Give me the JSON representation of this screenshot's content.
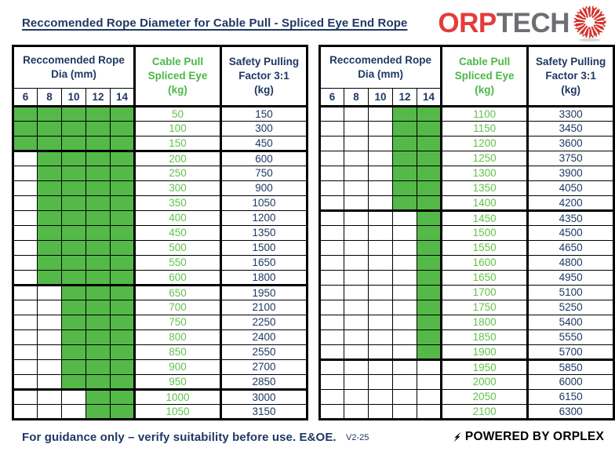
{
  "title": "Reccomended Rope Diameter for Cable Pull - Spliced Eye End Rope",
  "logo": {
    "part1": "ORP",
    "part2": "TECH"
  },
  "colors": {
    "navy": "#1F3864",
    "green_fill": "#54B948",
    "green_header_text": "#4CB848",
    "green_value_text": "#63C24C",
    "logo_red": "#E23D3B",
    "logo_gray": "#6D6E71",
    "border_black": "#000000"
  },
  "header": {
    "dia": "Reccomended Rope\nDia (mm)",
    "cable": "Cable Pull\nSpliced Eye\n(kg)",
    "safety": "Safety Pulling\nFactor 3:1\n(kg)",
    "diameters": [
      "6",
      "8",
      "10",
      "12",
      "14"
    ]
  },
  "tables": [
    {
      "rows": [
        {
          "pull": "50",
          "safety": "150",
          "green": [
            6,
            8,
            10,
            12,
            14
          ],
          "group_end": false
        },
        {
          "pull": "100",
          "safety": "300",
          "green": [
            6,
            8,
            10,
            12,
            14
          ],
          "group_end": false
        },
        {
          "pull": "150",
          "safety": "450",
          "green": [
            6,
            8,
            10,
            12,
            14
          ],
          "group_end": true
        },
        {
          "pull": "200",
          "safety": "600",
          "green": [
            8,
            10,
            12,
            14
          ],
          "group_end": false
        },
        {
          "pull": "250",
          "safety": "750",
          "green": [
            8,
            10,
            12,
            14
          ],
          "group_end": false
        },
        {
          "pull": "300",
          "safety": "900",
          "green": [
            8,
            10,
            12,
            14
          ],
          "group_end": false
        },
        {
          "pull": "350",
          "safety": "1050",
          "green": [
            8,
            10,
            12,
            14
          ],
          "group_end": false
        },
        {
          "pull": "400",
          "safety": "1200",
          "green": [
            8,
            10,
            12,
            14
          ],
          "group_end": false
        },
        {
          "pull": "450",
          "safety": "1350",
          "green": [
            8,
            10,
            12,
            14
          ],
          "group_end": false
        },
        {
          "pull": "500",
          "safety": "1500",
          "green": [
            8,
            10,
            12,
            14
          ],
          "group_end": false
        },
        {
          "pull": "550",
          "safety": "1650",
          "green": [
            8,
            10,
            12,
            14
          ],
          "group_end": false
        },
        {
          "pull": "600",
          "safety": "1800",
          "green": [
            8,
            10,
            12,
            14
          ],
          "group_end": true
        },
        {
          "pull": "650",
          "safety": "1950",
          "green": [
            10,
            12,
            14
          ],
          "group_end": false
        },
        {
          "pull": "700",
          "safety": "2100",
          "green": [
            10,
            12,
            14
          ],
          "group_end": false
        },
        {
          "pull": "750",
          "safety": "2250",
          "green": [
            10,
            12,
            14
          ],
          "group_end": false
        },
        {
          "pull": "800",
          "safety": "2400",
          "green": [
            10,
            12,
            14
          ],
          "group_end": false
        },
        {
          "pull": "850",
          "safety": "2550",
          "green": [
            10,
            12,
            14
          ],
          "group_end": false
        },
        {
          "pull": "900",
          "safety": "2700",
          "green": [
            10,
            12,
            14
          ],
          "group_end": false
        },
        {
          "pull": "950",
          "safety": "2850",
          "green": [
            10,
            12,
            14
          ],
          "group_end": true
        },
        {
          "pull": "1000",
          "safety": "3000",
          "green": [
            12,
            14
          ],
          "group_end": false
        },
        {
          "pull": "1050",
          "safety": "3150",
          "green": [
            12,
            14
          ],
          "group_end": false
        }
      ]
    },
    {
      "rows": [
        {
          "pull": "1100",
          "safety": "3300",
          "green": [
            12,
            14
          ],
          "group_end": false
        },
        {
          "pull": "1150",
          "safety": "3450",
          "green": [
            12,
            14
          ],
          "group_end": false
        },
        {
          "pull": "1200",
          "safety": "3600",
          "green": [
            12,
            14
          ],
          "group_end": false
        },
        {
          "pull": "1250",
          "safety": "3750",
          "green": [
            12,
            14
          ],
          "group_end": false
        },
        {
          "pull": "1300",
          "safety": "3900",
          "green": [
            12,
            14
          ],
          "group_end": false
        },
        {
          "pull": "1350",
          "safety": "4050",
          "green": [
            12,
            14
          ],
          "group_end": false
        },
        {
          "pull": "1400",
          "safety": "4200",
          "green": [
            12,
            14
          ],
          "group_end": true
        },
        {
          "pull": "1450",
          "safety": "4350",
          "green": [
            14
          ],
          "group_end": false
        },
        {
          "pull": "1500",
          "safety": "4500",
          "green": [
            14
          ],
          "group_end": false
        },
        {
          "pull": "1550",
          "safety": "4650",
          "green": [
            14
          ],
          "group_end": false
        },
        {
          "pull": "1600",
          "safety": "4800",
          "green": [
            14
          ],
          "group_end": false
        },
        {
          "pull": "1650",
          "safety": "4950",
          "green": [
            14
          ],
          "group_end": false
        },
        {
          "pull": "1700",
          "safety": "5100",
          "green": [
            14
          ],
          "group_end": false
        },
        {
          "pull": "1750",
          "safety": "5250",
          "green": [
            14
          ],
          "group_end": false
        },
        {
          "pull": "1800",
          "safety": "5400",
          "green": [
            14
          ],
          "group_end": false
        },
        {
          "pull": "1850",
          "safety": "5550",
          "green": [
            14
          ],
          "group_end": false
        },
        {
          "pull": "1900",
          "safety": "5700",
          "green": [
            14
          ],
          "group_end": true
        },
        {
          "pull": "1950",
          "safety": "5850",
          "green": [],
          "group_end": false
        },
        {
          "pull": "2000",
          "safety": "6000",
          "green": [],
          "group_end": false
        },
        {
          "pull": "2050",
          "safety": "6150",
          "green": [],
          "group_end": false
        },
        {
          "pull": "2100",
          "safety": "6300",
          "green": [],
          "group_end": false
        }
      ]
    }
  ],
  "footer": {
    "note": "For guidance only – verify suitability before use. E&OE.",
    "version": "V2-25",
    "powered": "POWERED BY ORPLEX"
  }
}
